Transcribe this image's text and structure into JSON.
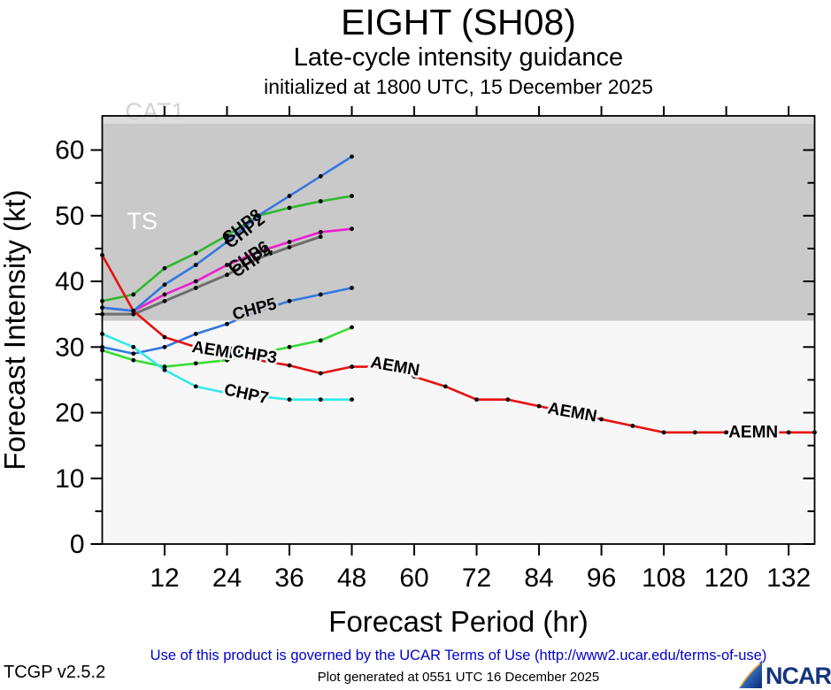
{
  "header": {
    "title": "EIGHT (SH08)",
    "subtitle": "Late-cycle intensity guidance",
    "init_line": "initialized at 1800 UTC, 15 December 2025"
  },
  "footer": {
    "terms": "Use of this product is governed by the UCAR Terms of Use (http://www2.ucar.edu/terms-of-use)",
    "version": "TCGP v2.5.2",
    "generated": "Plot generated at 0551 UTC   16 December 2025",
    "logo_text": "NCAR"
  },
  "chart_data": {
    "type": "line",
    "title": "EIGHT (SH08)",
    "xlabel": "Forecast Period (hr)",
    "ylabel": "Forecast Intensity (kt)",
    "xlim": [
      0,
      137
    ],
    "ylim": [
      0,
      65.2
    ],
    "x_ticks": [
      12,
      24,
      36,
      48,
      60,
      72,
      84,
      96,
      108,
      120,
      132
    ],
    "y_ticks": [
      0,
      10,
      20,
      30,
      40,
      50,
      60
    ],
    "y_minor_ticks": [
      5,
      15,
      25,
      35,
      45,
      55
    ],
    "grid": false,
    "legend": "labels-on-lines",
    "bands": [
      {
        "label": "CAT1",
        "from": 64,
        "to": 65.2,
        "color": "#dcdcdc"
      },
      {
        "label": "TS",
        "from": 34,
        "to": 64,
        "color": "#c9c9c9"
      },
      {
        "label": "",
        "from": 0,
        "to": 34,
        "color": "#f7f7f7"
      }
    ],
    "series": [
      {
        "name": "CHP6",
        "color": "#6e6e6e",
        "width": 3,
        "x": [
          0,
          6,
          12,
          18,
          24,
          30,
          36,
          42
        ],
        "y": [
          35,
          35,
          37,
          39,
          41,
          43.5,
          45.2,
          46.8
        ]
      },
      {
        "name": "CHP4",
        "color": "#ee1dd0",
        "width": 2.6,
        "x": [
          0,
          6,
          12,
          18,
          24,
          30,
          36,
          42,
          48
        ],
        "y": [
          36,
          35.5,
          38,
          40,
          42.5,
          44.5,
          46,
          47.5,
          48
        ]
      },
      {
        "name": "CHP8",
        "color": "#2eb82e",
        "width": 2.6,
        "x": [
          0,
          6,
          12,
          18,
          24,
          30,
          36,
          42,
          48
        ],
        "y": [
          37,
          38,
          42,
          44.3,
          47,
          50,
          51.2,
          52.2,
          53
        ]
      },
      {
        "name": "CHP2",
        "color": "#3377e0",
        "width": 2.6,
        "x": [
          0,
          6,
          12,
          18,
          24,
          30,
          36,
          42,
          48
        ],
        "y": [
          36,
          35.5,
          39.5,
          42.5,
          46,
          50,
          53,
          56,
          59
        ]
      },
      {
        "name": "CHP5",
        "color": "#3377e0",
        "width": 2.6,
        "x": [
          0,
          6,
          12,
          18,
          24,
          30,
          36,
          42,
          48
        ],
        "y": [
          30,
          29,
          30,
          32,
          33.5,
          35.5,
          37,
          38,
          39
        ]
      },
      {
        "name": "CHP3",
        "color": "#35dd35",
        "width": 2.6,
        "x": [
          0,
          6,
          12,
          18,
          24,
          30,
          36,
          42,
          48
        ],
        "y": [
          29.5,
          28,
          27,
          27.5,
          28,
          29,
          30,
          31,
          33
        ]
      },
      {
        "name": "CHP7",
        "color": "#35e8e8",
        "width": 2.6,
        "x": [
          0,
          6,
          12,
          18,
          24,
          30,
          36,
          42,
          48
        ],
        "y": [
          32,
          30,
          26.5,
          24,
          23,
          22.5,
          22,
          22,
          22
        ]
      },
      {
        "name": "AEMN",
        "color": "#e81010",
        "width": 2.6,
        "x": [
          0,
          6,
          12,
          18,
          24,
          30,
          36,
          42,
          48,
          54,
          60,
          66,
          72,
          78,
          84,
          90,
          96,
          102,
          108,
          114,
          120,
          126,
          132,
          137
        ],
        "y": [
          44,
          35.5,
          31.5,
          30,
          29,
          28,
          27.2,
          26,
          27,
          27,
          25.5,
          24,
          22,
          22,
          21,
          20,
          19,
          18,
          17,
          17,
          17,
          17,
          17,
          17
        ]
      }
    ],
    "annotations": [
      {
        "text": "CAT1",
        "hr": 10.1,
        "kt": 65.9,
        "color": "#d2d2d2",
        "size": 27,
        "weight": 400,
        "under": true
      },
      {
        "text": "TS",
        "hr": 7.7,
        "kt": 49.2,
        "color": "#ffffff",
        "size": 27,
        "weight": 400,
        "under": true
      },
      {
        "text": "CHP8",
        "hr": 26.9,
        "kt": 48.3,
        "rot": -38,
        "size": 19
      },
      {
        "text": "CHP2",
        "hr": 27.5,
        "kt": 47.6,
        "rot": -38,
        "size": 19
      },
      {
        "text": "CHP6",
        "hr": 28.2,
        "kt": 43.6,
        "rot": -33,
        "size": 19
      },
      {
        "text": "CHP4",
        "hr": 28.9,
        "kt": 43.0,
        "rot": -33,
        "size": 19
      },
      {
        "text": "CHP5",
        "hr": 29.3,
        "kt": 35.7,
        "rot": -15,
        "size": 19,
        "halo": "#c9c9c9"
      },
      {
        "text": "AEMN",
        "hr": 22.0,
        "kt": 29.4,
        "rot": 9,
        "size": 19,
        "halo": "#f7f7f7"
      },
      {
        "text": "CHP3",
        "hr": 29.3,
        "kt": 28.8,
        "rot": 9,
        "size": 19,
        "halo": "#f7f7f7"
      },
      {
        "text": "CHP7",
        "hr": 27.7,
        "kt": 22.8,
        "rot": 12,
        "size": 19,
        "halo": "#f7f7f7"
      },
      {
        "text": "AEMN",
        "hr": 56.3,
        "kt": 27.0,
        "rot": 10,
        "size": 19,
        "halo": "#f7f7f7"
      },
      {
        "text": "AEMN",
        "hr": 90.4,
        "kt": 20.0,
        "rot": 10,
        "size": 19,
        "halo": "#f7f7f7"
      },
      {
        "text": "AEMN",
        "hr": 125.2,
        "kt": 17.0,
        "rot": 0,
        "size": 19,
        "halo": "#f7f7f7"
      }
    ]
  }
}
